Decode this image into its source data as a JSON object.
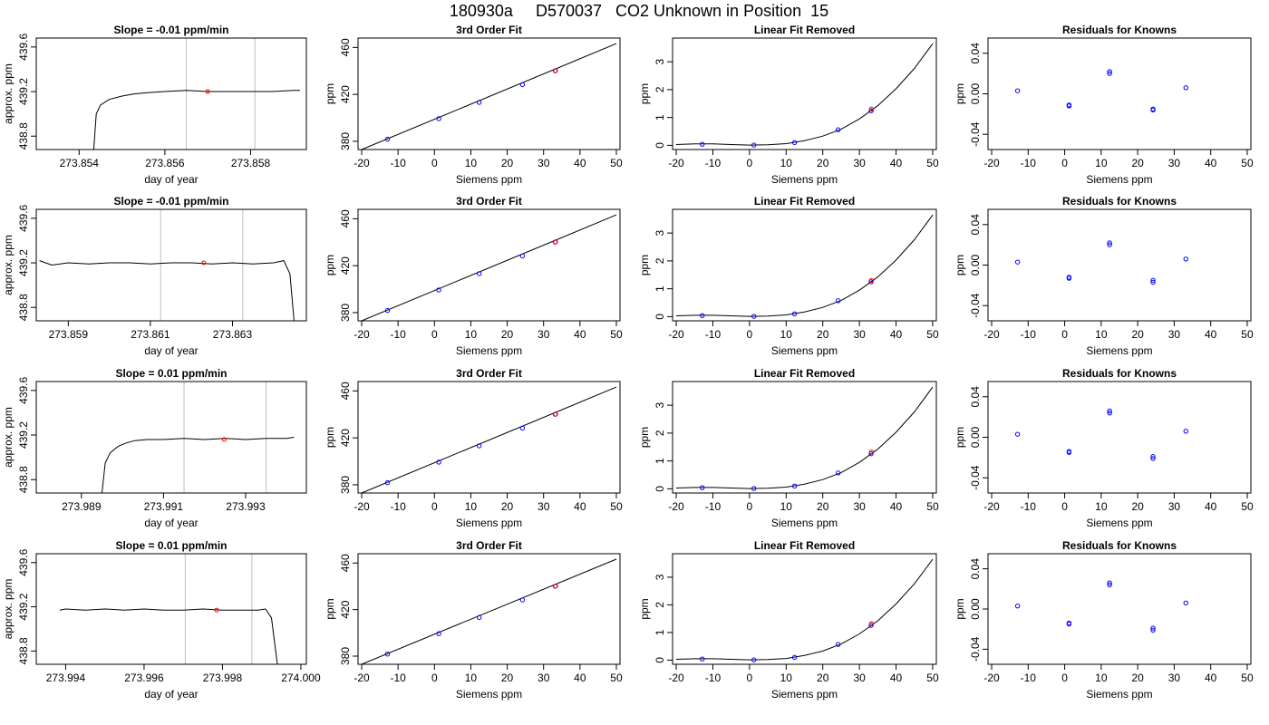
{
  "title": "180930a     D570037   CO2 Unknown in Position  15",
  "colors": {
    "known_point": "#0000ff",
    "unknown_point": "#ff0000",
    "window_line": "#bebebe",
    "trace": "#000000"
  },
  "chart_data": [
    {
      "type": "line",
      "title": "Slope =  -0.01  ppm/min",
      "xlabel": "day of year",
      "ylabel": "approx. ppm",
      "xlim": [
        273.853,
        273.8593
      ],
      "ylim": [
        438.68,
        439.68
      ],
      "xticks": [
        "273.854",
        "273.856",
        "273.858"
      ],
      "yticks": [
        "438.8",
        "439.2",
        "439.6"
      ],
      "series": [
        {
          "x": [
            273.85434,
            273.8544,
            273.8545,
            273.8547,
            273.855,
            273.8553,
            273.8556,
            273.856,
            273.8565,
            273.857,
            273.8575,
            273.858,
            273.8585,
            273.859,
            273.85915
          ],
          "y": [
            438.68,
            439.0,
            439.08,
            439.13,
            439.16,
            439.18,
            439.19,
            439.2,
            439.21,
            439.2,
            439.2,
            439.2,
            439.2,
            439.21,
            439.21
          ]
        }
      ],
      "window": [
        273.8565,
        273.8581
      ],
      "marker": [
        273.857,
        439.2
      ]
    },
    {
      "type": "line",
      "title": "3rd Order Fit",
      "xlabel": "Siemens ppm",
      "ylabel": "ppm",
      "xlim": [
        -21,
        51
      ],
      "ylim": [
        373,
        468
      ],
      "xticks": [
        "-20",
        "-10",
        "0",
        "10",
        "20",
        "30",
        "40",
        "50"
      ],
      "yticks": [
        "380",
        "420",
        "460"
      ],
      "series": [
        {
          "x": [
            -20,
            50
          ],
          "y": [
            373.0,
            463.3
          ]
        }
      ],
      "points": {
        "x": [
          -12.9,
          1.2,
          12.3,
          24.2,
          33.2
        ],
        "y": [
          381.8,
          399.3,
          413.2,
          428.3,
          440.1
        ]
      },
      "unknown": [
        33.3,
        440.2
      ]
    },
    {
      "type": "line",
      "title": "Linear Fit Removed",
      "xlabel": "Siemens ppm",
      "ylabel": "ppm",
      "xlim": [
        -21,
        51
      ],
      "ylim": [
        -0.15,
        3.85
      ],
      "xticks": [
        "-20",
        "-10",
        "0",
        "10",
        "20",
        "30",
        "40",
        "50"
      ],
      "yticks": [
        "0",
        "1",
        "2",
        "3"
      ],
      "series": [
        {
          "x": [
            -20,
            -15,
            -10,
            -5,
            0,
            5,
            10,
            15,
            20,
            25,
            30,
            35,
            40,
            45,
            50
          ],
          "y": [
            0.03,
            0.05,
            0.05,
            0.03,
            0.01,
            0.02,
            0.06,
            0.17,
            0.33,
            0.58,
            0.95,
            1.42,
            2.03,
            2.76,
            3.65
          ]
        }
      ],
      "points": {
        "x": [
          -12.9,
          1.2,
          12.3,
          24.2,
          33.2
        ],
        "y": [
          0.04,
          0.01,
          0.1,
          0.56,
          1.24
        ]
      },
      "unknown": [
        33.3,
        1.3
      ]
    },
    {
      "type": "scatter",
      "title": "Residuals for Knowns",
      "xlabel": "Siemens ppm",
      "ylabel": "ppm",
      "xlim": [
        -21,
        51
      ],
      "ylim": [
        -0.055,
        0.055
      ],
      "xticks": [
        "-20",
        "-10",
        "0",
        "10",
        "20",
        "30",
        "40",
        "50"
      ],
      "yticks": [
        "-0.04",
        "0.00",
        "0.04"
      ],
      "points": {
        "x": [
          -12.9,
          1.2,
          1.2,
          12.3,
          12.3,
          24.2,
          24.2,
          33.2
        ],
        "y": [
          0.003,
          -0.012,
          -0.011,
          0.02,
          0.022,
          -0.015,
          -0.016,
          0.006
        ]
      }
    },
    {
      "type": "line",
      "title": "Slope =  -0.01  ppm/min",
      "xlabel": "day of year",
      "ylabel": "approx. ppm",
      "xlim": [
        273.85822,
        273.8648
      ],
      "ylim": [
        438.68,
        439.68
      ],
      "xticks": [
        "273.859",
        "273.861",
        "273.863"
      ],
      "yticks": [
        "438.8",
        "439.2",
        "439.6"
      ],
      "series": [
        {
          "x": [
            273.8583,
            273.8586,
            273.859,
            273.8595,
            273.86,
            273.8605,
            273.861,
            273.8615,
            273.862,
            273.8625,
            273.863,
            273.8635,
            273.864,
            273.86425,
            273.8644,
            273.8645
          ],
          "y": [
            439.22,
            439.18,
            439.2,
            439.19,
            439.2,
            439.2,
            439.19,
            439.2,
            439.2,
            439.19,
            439.2,
            439.19,
            439.2,
            439.22,
            439.1,
            438.68
          ]
        }
      ],
      "window": [
        273.86125,
        273.86325
      ],
      "marker": [
        273.8623,
        439.2
      ]
    },
    {
      "type": "line",
      "title": "3rd Order Fit",
      "xlabel": "Siemens ppm",
      "ylabel": "ppm",
      "xlim": [
        -21,
        51
      ],
      "ylim": [
        373,
        468
      ],
      "xticks": [
        "-20",
        "-10",
        "0",
        "10",
        "20",
        "30",
        "40",
        "50"
      ],
      "yticks": [
        "380",
        "420",
        "460"
      ],
      "series": [
        {
          "x": [
            -20,
            50
          ],
          "y": [
            373.0,
            463.3
          ]
        }
      ],
      "points": {
        "x": [
          -12.9,
          1.2,
          12.3,
          24.2,
          33.2
        ],
        "y": [
          381.8,
          399.3,
          413.2,
          428.3,
          440.1
        ]
      },
      "unknown": [
        33.3,
        440.2
      ]
    },
    {
      "type": "line",
      "title": "Linear Fit Removed",
      "xlabel": "Siemens ppm",
      "ylabel": "ppm",
      "xlim": [
        -21,
        51
      ],
      "ylim": [
        -0.15,
        3.85
      ],
      "xticks": [
        "-20",
        "-10",
        "0",
        "10",
        "20",
        "30",
        "40",
        "50"
      ],
      "yticks": [
        "0",
        "1",
        "2",
        "3"
      ],
      "series": [
        {
          "x": [
            -20,
            -15,
            -10,
            -5,
            0,
            5,
            10,
            15,
            20,
            25,
            30,
            35,
            40,
            45,
            50
          ],
          "y": [
            0.03,
            0.05,
            0.05,
            0.03,
            0.01,
            0.02,
            0.06,
            0.17,
            0.33,
            0.58,
            0.95,
            1.42,
            2.03,
            2.76,
            3.65
          ]
        }
      ],
      "points": {
        "x": [
          -12.9,
          1.2,
          12.3,
          24.2,
          33.2
        ],
        "y": [
          0.04,
          0.01,
          0.1,
          0.57,
          1.25
        ]
      },
      "unknown": [
        33.3,
        1.3
      ]
    },
    {
      "type": "scatter",
      "title": "Residuals for Knowns",
      "xlabel": "Siemens ppm",
      "ylabel": "ppm",
      "xlim": [
        -21,
        51
      ],
      "ylim": [
        -0.055,
        0.055
      ],
      "xticks": [
        "-20",
        "-10",
        "0",
        "10",
        "20",
        "30",
        "40",
        "50"
      ],
      "yticks": [
        "-0.04",
        "0.00",
        "0.04"
      ],
      "points": {
        "x": [
          -12.9,
          1.2,
          1.2,
          12.3,
          12.3,
          24.2,
          24.2,
          33.2
        ],
        "y": [
          0.003,
          -0.012,
          -0.013,
          0.022,
          0.02,
          -0.015,
          -0.017,
          0.006
        ]
      }
    },
    {
      "type": "line",
      "title": "Slope =  0.01  ppm/min",
      "xlabel": "day of year",
      "ylabel": "approx. ppm",
      "xlim": [
        273.9879,
        273.99448
      ],
      "ylim": [
        438.68,
        439.68
      ],
      "xticks": [
        "273.989",
        "273.991",
        "273.993"
      ],
      "yticks": [
        "438.8",
        "439.2",
        "439.6"
      ],
      "series": [
        {
          "x": [
            273.9895,
            273.98958,
            273.9897,
            273.9899,
            273.9901,
            273.9903,
            273.9906,
            273.991,
            273.9915,
            273.992,
            273.9925,
            273.993,
            273.9935,
            273.994,
            273.99418
          ],
          "y": [
            438.68,
            438.95,
            439.04,
            439.1,
            439.13,
            439.15,
            439.16,
            439.16,
            439.17,
            439.16,
            439.17,
            439.16,
            439.17,
            439.17,
            439.18
          ]
        }
      ],
      "window": [
        273.9915,
        273.9935
      ],
      "marker": [
        273.99248,
        439.16
      ]
    },
    {
      "type": "line",
      "title": "3rd Order Fit",
      "xlabel": "Siemens ppm",
      "ylabel": "ppm",
      "xlim": [
        -21,
        51
      ],
      "ylim": [
        373,
        468
      ],
      "xticks": [
        "-20",
        "-10",
        "0",
        "10",
        "20",
        "30",
        "40",
        "50"
      ],
      "yticks": [
        "380",
        "420",
        "460"
      ],
      "series": [
        {
          "x": [
            -20,
            50
          ],
          "y": [
            373.0,
            463.3
          ]
        }
      ],
      "points": {
        "x": [
          -12.9,
          1.2,
          12.3,
          24.2,
          33.2
        ],
        "y": [
          381.8,
          399.3,
          413.2,
          428.3,
          440.1
        ]
      },
      "unknown": [
        33.3,
        440.2
      ]
    },
    {
      "type": "line",
      "title": "Linear Fit Removed",
      "xlabel": "Siemens ppm",
      "ylabel": "ppm",
      "xlim": [
        -21,
        51
      ],
      "ylim": [
        -0.15,
        3.85
      ],
      "xticks": [
        "-20",
        "-10",
        "0",
        "10",
        "20",
        "30",
        "40",
        "50"
      ],
      "yticks": [
        "0",
        "1",
        "2",
        "3"
      ],
      "series": [
        {
          "x": [
            -20,
            -15,
            -10,
            -5,
            0,
            5,
            10,
            15,
            20,
            25,
            30,
            35,
            40,
            45,
            50
          ],
          "y": [
            0.03,
            0.05,
            0.05,
            0.03,
            0.01,
            0.02,
            0.06,
            0.17,
            0.33,
            0.58,
            0.95,
            1.42,
            2.03,
            2.76,
            3.65
          ]
        }
      ],
      "points": {
        "x": [
          -12.9,
          1.2,
          12.3,
          24.2,
          33.2
        ],
        "y": [
          0.04,
          0.01,
          0.1,
          0.57,
          1.26
        ]
      },
      "unknown": [
        33.3,
        1.32
      ]
    },
    {
      "type": "scatter",
      "title": "Residuals for Knowns",
      "xlabel": "Siemens ppm",
      "ylabel": "ppm",
      "xlim": [
        -21,
        51
      ],
      "ylim": [
        -0.055,
        0.055
      ],
      "xticks": [
        "-20",
        "-10",
        "0",
        "10",
        "20",
        "30",
        "40",
        "50"
      ],
      "yticks": [
        "-0.04",
        "0.00",
        "0.04"
      ],
      "points": {
        "x": [
          -12.9,
          1.2,
          1.2,
          12.3,
          12.3,
          24.2,
          24.2,
          33.2
        ],
        "y": [
          0.003,
          -0.014,
          -0.015,
          0.024,
          0.026,
          -0.019,
          -0.021,
          0.006
        ]
      }
    },
    {
      "type": "line",
      "title": "Slope =  0.01  ppm/min",
      "xlabel": "day of year",
      "ylabel": "approx. ppm",
      "xlim": [
        273.99325,
        274.00014
      ],
      "ylim": [
        438.68,
        439.68
      ],
      "xticks": [
        "273.994",
        "273.996",
        "273.998",
        "274.000"
      ],
      "yticks": [
        "438.8",
        "439.2",
        "439.6"
      ],
      "series": [
        {
          "x": [
            273.99385,
            273.994,
            273.9945,
            273.995,
            273.9955,
            273.996,
            273.9965,
            273.997,
            273.9975,
            273.998,
            273.9985,
            273.9989,
            273.9991,
            273.99925,
            273.9994
          ],
          "y": [
            439.17,
            439.18,
            439.17,
            439.18,
            439.17,
            439.18,
            439.17,
            439.17,
            439.18,
            439.17,
            439.17,
            439.17,
            439.18,
            439.1,
            438.68
          ]
        }
      ],
      "window": [
        273.99705,
        273.99875
      ],
      "marker": [
        273.99785,
        439.17
      ]
    },
    {
      "type": "line",
      "title": "3rd Order Fit",
      "xlabel": "Siemens ppm",
      "ylabel": "ppm",
      "xlim": [
        -21,
        51
      ],
      "ylim": [
        373,
        468
      ],
      "xticks": [
        "-20",
        "-10",
        "0",
        "10",
        "20",
        "30",
        "40",
        "50"
      ],
      "yticks": [
        "380",
        "420",
        "460"
      ],
      "series": [
        {
          "x": [
            -20,
            50
          ],
          "y": [
            373.0,
            463.3
          ]
        }
      ],
      "points": {
        "x": [
          -12.9,
          1.2,
          12.3,
          24.2,
          33.2
        ],
        "y": [
          381.8,
          399.3,
          413.2,
          428.3,
          440.1
        ]
      },
      "unknown": [
        33.3,
        440.2
      ]
    },
    {
      "type": "line",
      "title": "Linear Fit Removed",
      "xlabel": "Siemens ppm",
      "ylabel": "ppm",
      "xlim": [
        -21,
        51
      ],
      "ylim": [
        -0.15,
        3.85
      ],
      "xticks": [
        "-20",
        "-10",
        "0",
        "10",
        "20",
        "30",
        "40",
        "50"
      ],
      "yticks": [
        "0",
        "1",
        "2",
        "3"
      ],
      "series": [
        {
          "x": [
            -20,
            -15,
            -10,
            -5,
            0,
            5,
            10,
            15,
            20,
            25,
            30,
            35,
            40,
            45,
            50
          ],
          "y": [
            0.03,
            0.05,
            0.05,
            0.03,
            0.01,
            0.02,
            0.06,
            0.17,
            0.33,
            0.58,
            0.95,
            1.42,
            2.03,
            2.76,
            3.65
          ]
        }
      ],
      "points": {
        "x": [
          -12.9,
          1.2,
          12.3,
          24.2,
          33.2
        ],
        "y": [
          0.04,
          0.01,
          0.1,
          0.57,
          1.26
        ]
      },
      "unknown": [
        33.3,
        1.32
      ]
    },
    {
      "type": "scatter",
      "title": "Residuals for Knowns",
      "xlabel": "Siemens ppm",
      "ylabel": "ppm",
      "xlim": [
        -21,
        51
      ],
      "ylim": [
        -0.055,
        0.055
      ],
      "xticks": [
        "-20",
        "-10",
        "0",
        "10",
        "20",
        "30",
        "40",
        "50"
      ],
      "yticks": [
        "-0.04",
        "0.00",
        "0.04"
      ],
      "points": {
        "x": [
          -12.9,
          1.2,
          1.2,
          12.3,
          12.3,
          24.2,
          24.2,
          33.2
        ],
        "y": [
          0.003,
          -0.014,
          -0.015,
          0.024,
          0.026,
          -0.019,
          -0.021,
          0.006
        ]
      }
    }
  ]
}
